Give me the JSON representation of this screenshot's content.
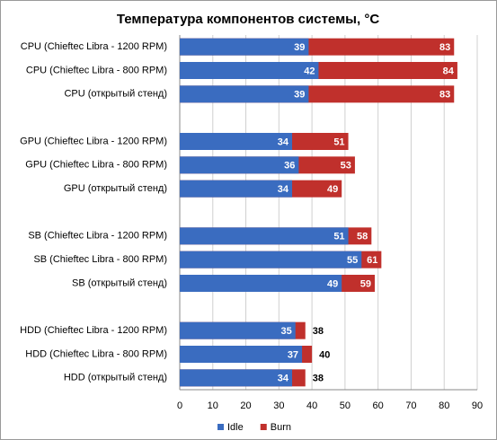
{
  "chart_data": {
    "type": "bar",
    "orientation": "horizontal",
    "overlap": true,
    "title": "Температура компонентов системы, °C",
    "categories": [
      "CPU (Chieftec Libra - 1200 RPM)",
      "CPU (Chieftec Libra - 800 RPM)",
      "CPU (открытый стенд)",
      null,
      "GPU (Chieftec Libra - 1200 RPM)",
      "GPU (Chieftec Libra - 800 RPM)",
      "GPU (открытый стенд)",
      null,
      "SB (Chieftec Libra - 1200 RPM)",
      "SB (Chieftec Libra - 800 RPM)",
      "SB (открытый стенд)",
      null,
      "HDD (Chieftec Libra - 1200 RPM)",
      "HDD (Chieftec Libra - 800 RPM)",
      "HDD (открытый стенд)"
    ],
    "series": [
      {
        "name": "Burn",
        "color": "#c0302c",
        "values": [
          83,
          84,
          83,
          null,
          51,
          53,
          49,
          null,
          58,
          61,
          59,
          null,
          38,
          40,
          38
        ]
      },
      {
        "name": "Idle",
        "color": "#3a6cc0",
        "values": [
          39,
          42,
          39,
          null,
          34,
          36,
          34,
          null,
          51,
          55,
          49,
          null,
          35,
          37,
          34
        ]
      }
    ],
    "legend": [
      "Idle",
      "Burn"
    ],
    "xlim": [
      0,
      90
    ],
    "xticks": [
      0,
      10,
      20,
      30,
      40,
      50,
      60,
      70,
      80,
      90
    ],
    "grid": true
  }
}
